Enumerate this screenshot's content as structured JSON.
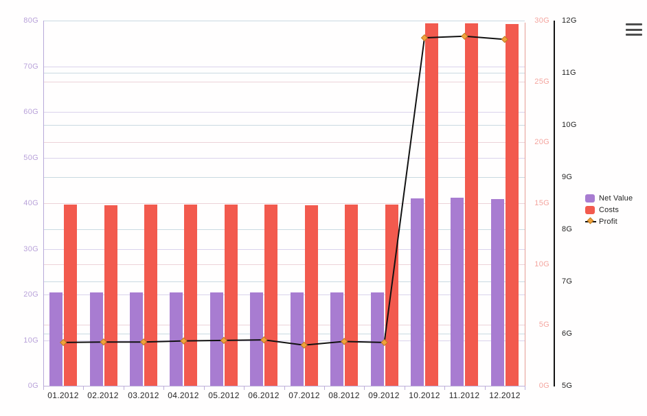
{
  "chart_data": {
    "type": "combo-column-line",
    "title": "",
    "categories": [
      "01.2012",
      "02.2012",
      "03.2012",
      "04.2012",
      "05.2012",
      "06.2012",
      "07.2012",
      "08.2012",
      "09.2012",
      "10.2012",
      "11.2012",
      "12.2012"
    ],
    "series": [
      {
        "name": "Net Value",
        "type": "column",
        "axis": "left",
        "color": "#a87cd1",
        "values": [
          20.5,
          20.5,
          20.5,
          20.5,
          20.5,
          20.5,
          20.5,
          20.5,
          20.5,
          41.0,
          41.2,
          40.9
        ]
      },
      {
        "name": "Costs",
        "type": "column",
        "axis": "right_inner",
        "color": "#f25a4e",
        "values": [
          14.9,
          14.85,
          14.9,
          14.9,
          14.9,
          14.9,
          14.85,
          14.9,
          14.9,
          29.8,
          29.75,
          29.7
        ]
      },
      {
        "name": "Profit",
        "type": "line",
        "axis": "right_outer",
        "color": "#111111",
        "marker": "diamond",
        "marker_color": "#f0a23c",
        "values": [
          5.83,
          5.84,
          5.84,
          5.86,
          5.87,
          5.88,
          5.78,
          5.85,
          5.83,
          11.67,
          11.7,
          11.64
        ]
      }
    ],
    "axes": {
      "left": {
        "min": 0,
        "max": 80,
        "step": 10,
        "unit": "G",
        "label_color": "#b8a1d9",
        "grid_color": "#d9d2ec",
        "line_color": "#b7a8d8"
      },
      "right_inner": {
        "min": 0,
        "max": 30,
        "step": 5,
        "unit": "G",
        "label_color": "#f4a49e",
        "grid_color": "#ecd2d8",
        "line_color": "#e59b94"
      },
      "right_outer": {
        "min": 5,
        "max": 12,
        "step": 1,
        "unit": "G",
        "label_color": "#1f1f1f",
        "grid_color": "#c9d9e1",
        "line_color": "#111111"
      }
    },
    "x_axis": {
      "label_color": "#242424",
      "line_color": "#bdaed9"
    },
    "legend": {
      "position": "right",
      "entries": [
        "Net Value",
        "Costs",
        "Profit"
      ]
    },
    "grid": true
  },
  "toolbar": {
    "menu_icon": "hamburger-menu"
  }
}
